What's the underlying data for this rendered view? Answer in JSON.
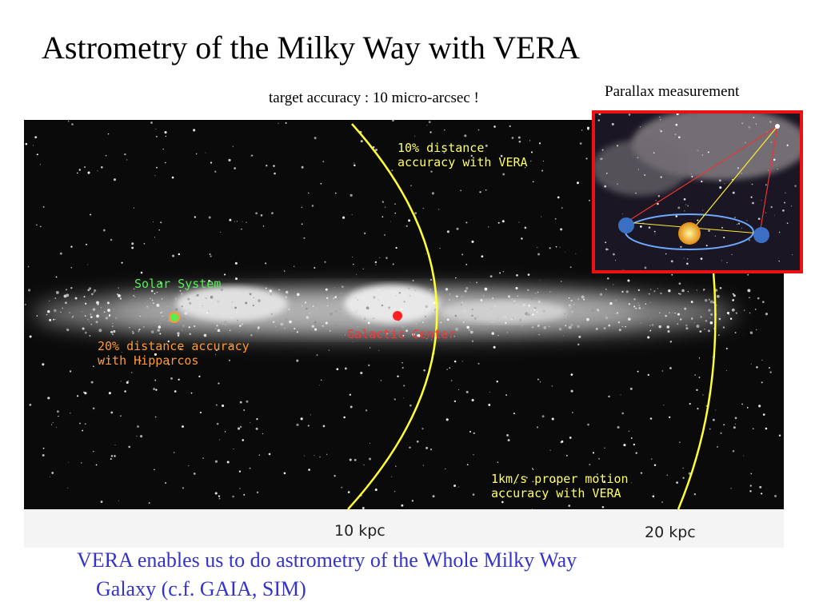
{
  "slide": {
    "title": "Astrometry of the Milky Way with VERA",
    "subtitle": "target accuracy  : 10 micro-arcsec !",
    "inset_caption": "Parallax measurement",
    "image_labels": {
      "vera_distance": [
        "10% distance",
        "accuracy with VERA"
      ],
      "solar_system": "Solar System",
      "hipparcos": [
        "20% distance accuracy",
        "with Hipparcos"
      ],
      "galactic_center": "Galactic Center",
      "proper_motion": [
        "1km/s proper motion",
        "accuracy with VERA"
      ]
    },
    "scale_labels": [
      "10 kpc",
      "20 kpc"
    ],
    "caption": [
      "VERA enables us to do astrometry of the Whole Milky Way",
      "Galaxy (c.f. GAIA, SIM)"
    ]
  }
}
